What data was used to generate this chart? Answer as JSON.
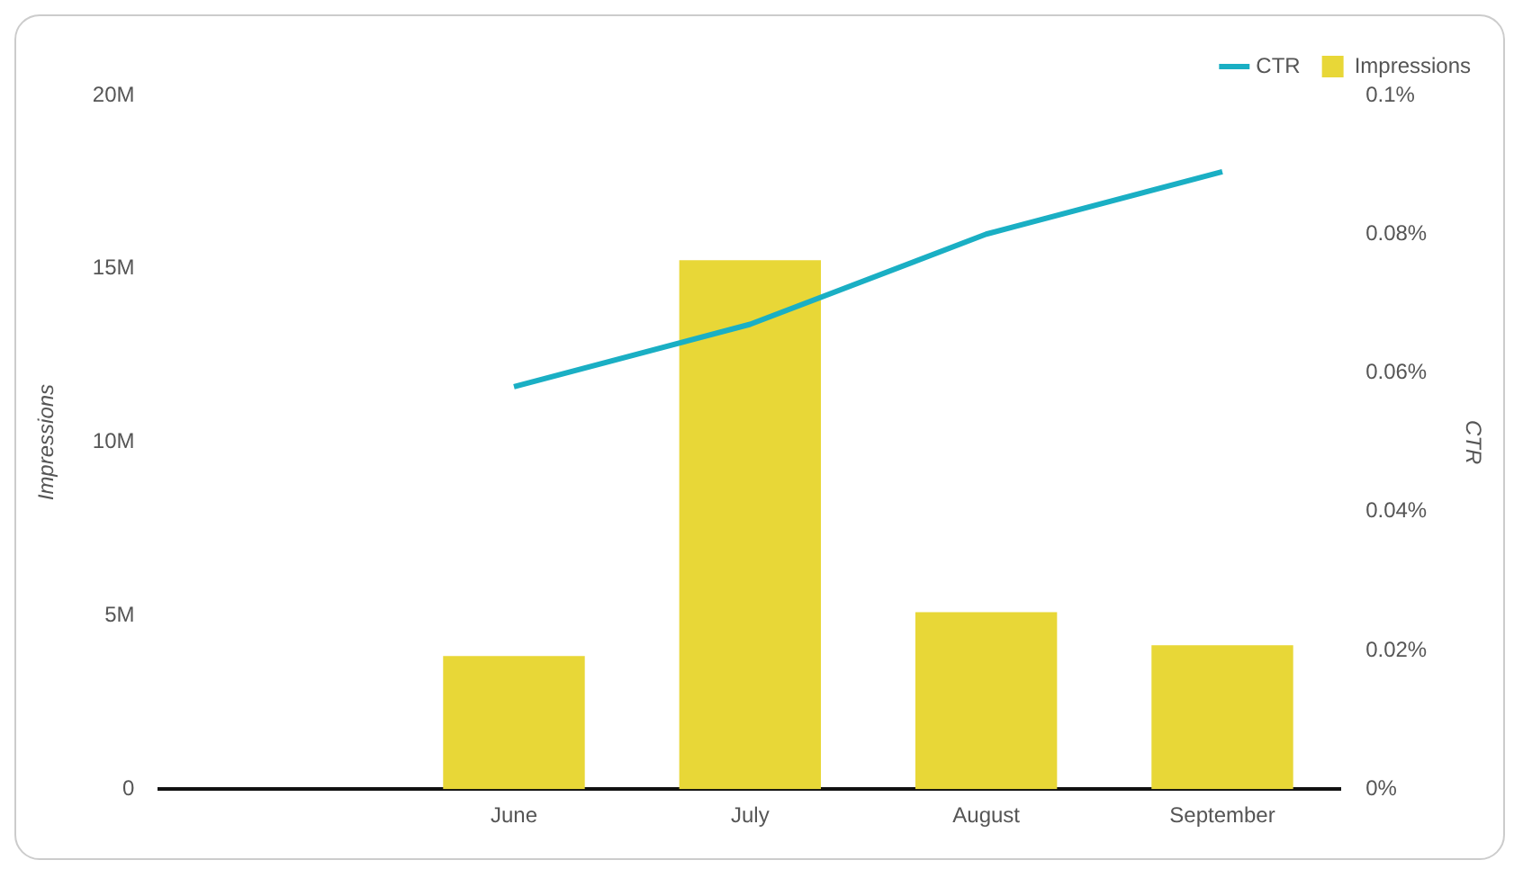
{
  "chart_data": {
    "type": "bar",
    "categories": [
      null,
      "June",
      "July",
      "August",
      "September"
    ],
    "series": [
      {
        "name": "CTR",
        "type": "line",
        "axis": "y2",
        "color": "#1aafc4",
        "values": [
          null,
          0.058,
          0.067,
          0.08,
          0.089
        ]
      },
      {
        "name": "Impressions",
        "color": "#e8d737",
        "values": [
          null,
          3840000,
          15250000,
          5100000,
          4150000
        ]
      }
    ],
    "ylabel": "Impressions",
    "y2label": "CTR",
    "ylim": [
      0,
      20000000
    ],
    "yticks": [
      {
        "value": 0,
        "label": "0"
      },
      {
        "value": 5000000,
        "label": "5M"
      },
      {
        "value": 10000000,
        "label": "10M"
      },
      {
        "value": 15000000,
        "label": "15M"
      },
      {
        "value": 20000000,
        "label": "20M"
      }
    ],
    "y2lim": [
      0,
      0.1
    ],
    "y2ticks": [
      {
        "value": 0,
        "label": "0%"
      },
      {
        "value": 0.02,
        "label": "0.02%"
      },
      {
        "value": 0.04,
        "label": "0.04%"
      },
      {
        "value": 0.06,
        "label": "0.06%"
      },
      {
        "value": 0.08,
        "label": "0.08%"
      },
      {
        "value": 0.1,
        "label": "0.1%"
      }
    ],
    "grid": false,
    "legend": "top right"
  }
}
